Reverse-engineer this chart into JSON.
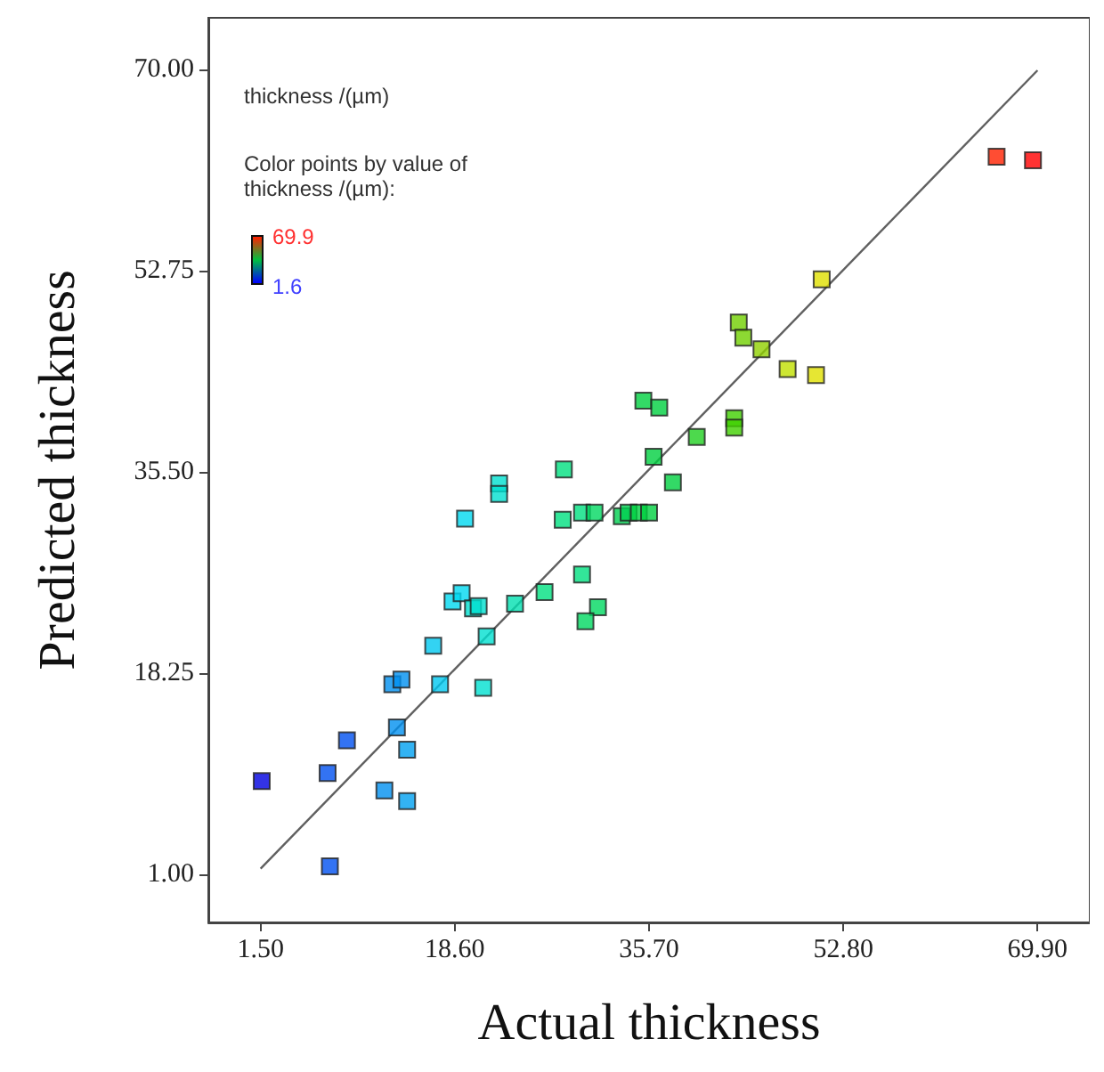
{
  "chart_data": {
    "type": "scatter",
    "xlabel": "Actual thickness",
    "ylabel": "Predicted thickness",
    "annotations": [
      "thickness /(µm)",
      "Color points by value of\nthickness /(µm):",
      "69.9",
      "1.6"
    ],
    "xlim": [
      -3.1,
      74.5
    ],
    "ylim": [
      -3.1,
      74.4
    ],
    "xticks": [
      {
        "value": 1.5,
        "label": "1.50"
      },
      {
        "value": 18.6,
        "label": "18.60"
      },
      {
        "value": 35.7,
        "label": "35.70"
      },
      {
        "value": 52.8,
        "label": "52.80"
      },
      {
        "value": 69.9,
        "label": "69.90"
      }
    ],
    "yticks": [
      {
        "value": 1,
        "label": "1.00"
      },
      {
        "value": 18.25,
        "label": "18.25"
      },
      {
        "value": 35.5,
        "label": "35.50"
      },
      {
        "value": 52.75,
        "label": "52.75"
      },
      {
        "value": 70,
        "label": "70.00"
      }
    ],
    "grid": false,
    "marker": "square",
    "series": [
      {
        "x": [
          66.3,
          69.5,
          50.9,
          43.6,
          44.0,
          45.6,
          47.9,
          50.4,
          35.2,
          36.6,
          43.2,
          43.2,
          39.9,
          36.1,
          37.8,
          28.2,
          22.5,
          22.5,
          19.5,
          28.1,
          29.8,
          30.9,
          33.3,
          33.9,
          34.8,
          35.7,
          29.8,
          31.2,
          30.1,
          26.5,
          23.9,
          21.4,
          18.4,
          19.2,
          20.2,
          20.7,
          16.7,
          17.3,
          21.1,
          13.1,
          13.9,
          13.5,
          9.1,
          14.4,
          7.4,
          1.6,
          12.4,
          14.4,
          7.6
        ],
        "values": [
          62.5,
          62.2,
          52.0,
          48.3,
          47.0,
          46.0,
          44.3,
          43.8,
          41.6,
          41.0,
          40.1,
          39.3,
          38.5,
          36.8,
          34.6,
          35.7,
          34.5,
          33.6,
          31.5,
          31.4,
          32.0,
          32.0,
          31.7,
          32.0,
          32.0,
          32.0,
          26.7,
          23.9,
          22.7,
          25.2,
          24.2,
          21.4,
          24.4,
          25.1,
          23.8,
          24.0,
          20.6,
          17.3,
          17.0,
          17.3,
          17.7,
          13.6,
          12.5,
          11.7,
          9.7,
          9.0,
          8.2,
          7.3,
          1.7
        ],
        "colors": [
          "#ff2000",
          "#ff0000",
          "#e0e000",
          "#70d000",
          "#70d000",
          "#90d000",
          "#c0e000",
          "#e0e000",
          "#00d040",
          "#00d040",
          "#40d000",
          "#40d000",
          "#20d020",
          "#00d040",
          "#00d040",
          "#00e080",
          "#00e0d0",
          "#00e0d0",
          "#00d8f0",
          "#00e080",
          "#00e080",
          "#00d860",
          "#00d050",
          "#00d050",
          "#00d040",
          "#00d040",
          "#00e080",
          "#00d860",
          "#00d860",
          "#00e080",
          "#00e0b0",
          "#00e0d0",
          "#00d8f0",
          "#00d8f0",
          "#00e0d0",
          "#00e0d0",
          "#00c8f0",
          "#00c8f0",
          "#00e0d0",
          "#0090f0",
          "#0090f0",
          "#0090f0",
          "#0050f0",
          "#00a0f0",
          "#0050f0",
          "#0000e0",
          "#0090f0",
          "#00a0f0",
          "#0050f0"
        ]
      },
      {
        "type": "line",
        "color": "#606060",
        "line_style": "solid",
        "marker": "none",
        "x": [
          1.5,
          69.9
        ],
        "values": [
          1.5,
          69.9
        ]
      }
    ]
  }
}
